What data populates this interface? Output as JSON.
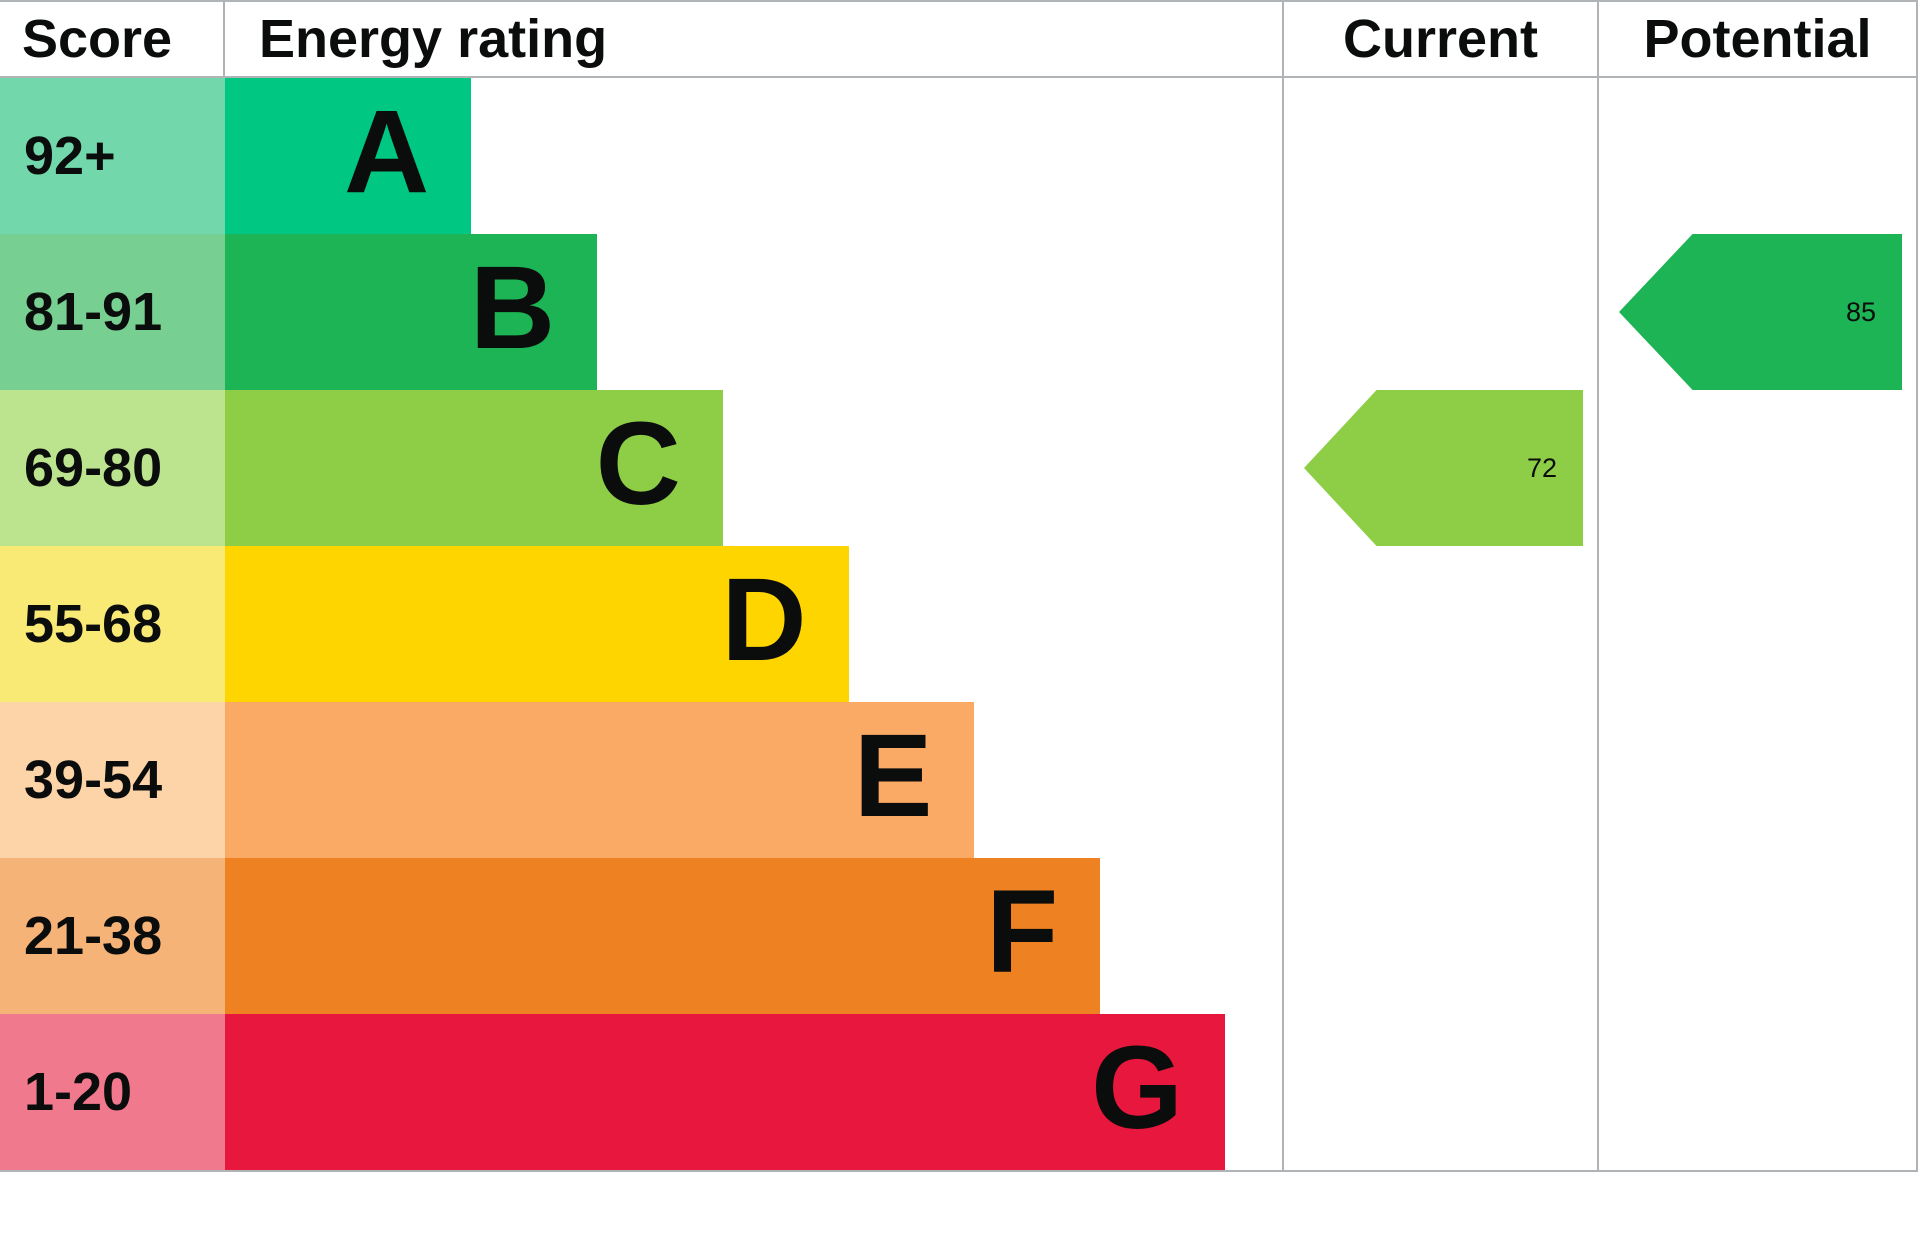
{
  "page": {
    "background": "#ffffff",
    "border_color": "#b1b4b6",
    "text_color": "#0b0c0c"
  },
  "chart_data": {
    "type": "bar",
    "subtype": "epc-energy-rating",
    "title": "Energy rating",
    "columns": [
      "Score",
      "Energy rating",
      "Current",
      "Potential"
    ],
    "score_range": [
      1,
      100
    ],
    "grid": false,
    "legend": false,
    "bands": [
      {
        "score": "92+",
        "letter": "A",
        "color": "#00c781",
        "score_bg": "#72d8ac",
        "bar_length_pct": 23.3
      },
      {
        "score": "81-91",
        "letter": "B",
        "color": "#1cb454",
        "score_bg": "#77cf92",
        "bar_length_pct": 35.2
      },
      {
        "score": "69-80",
        "letter": "C",
        "color": "#8dce46",
        "score_bg": "#bce38e",
        "bar_length_pct": 47.1
      },
      {
        "score": "55-68",
        "letter": "D",
        "color": "#ffd500",
        "score_bg": "#f9ea76",
        "bar_length_pct": 59.0
      },
      {
        "score": "39-54",
        "letter": "E",
        "color": "#fbaa65",
        "score_bg": "#fdd3a8",
        "bar_length_pct": 70.9
      },
      {
        "score": "21-38",
        "letter": "F",
        "color": "#ee8122",
        "score_bg": "#f5b377",
        "bar_length_pct": 82.8
      },
      {
        "score": "1-20",
        "letter": "G",
        "color": "#e8173d",
        "score_bg": "#f1798e",
        "bar_length_pct": 94.6
      }
    ],
    "markers": {
      "current": {
        "label": "Current",
        "value": 72,
        "band": "C",
        "color": "#8dce46"
      },
      "potential": {
        "label": "Potential",
        "value": 85,
        "band": "B",
        "color": "#1cb454"
      }
    }
  }
}
